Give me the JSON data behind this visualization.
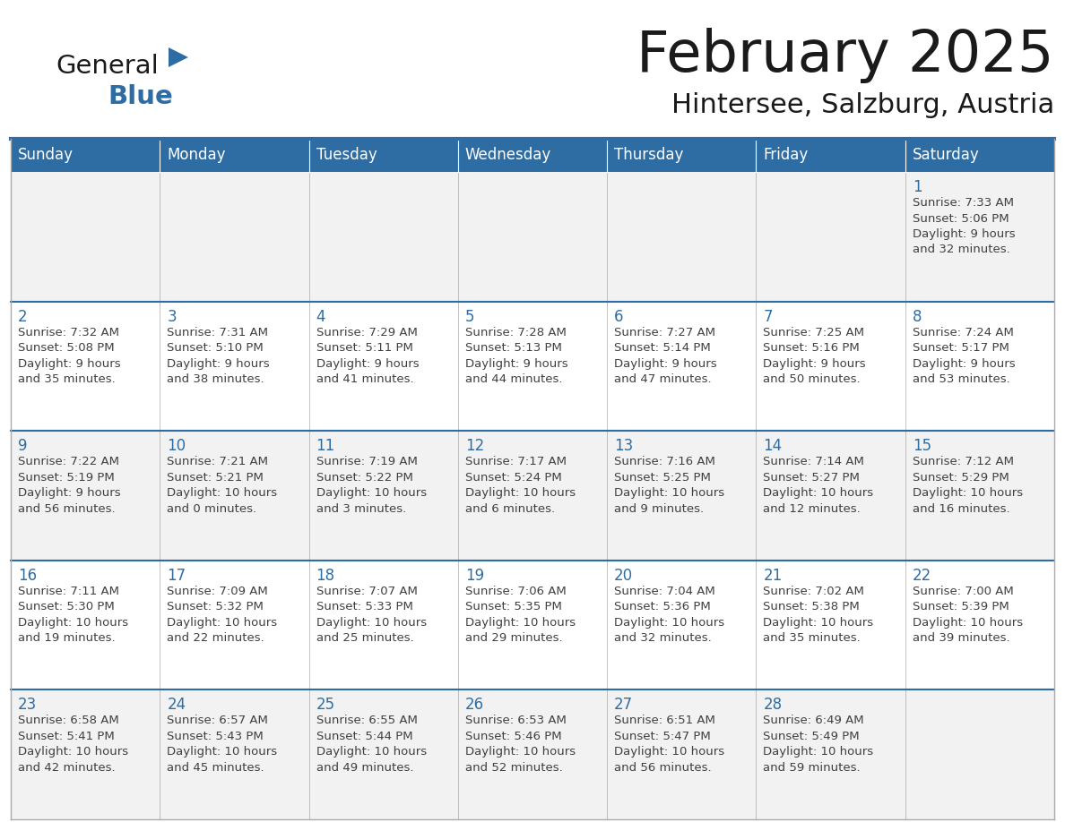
{
  "title": "February 2025",
  "subtitle": "Hintersee, Salzburg, Austria",
  "header_bg": "#2E6DA4",
  "header_text_color": "#FFFFFF",
  "cell_bg_light": "#F2F2F2",
  "cell_bg_white": "#FFFFFF",
  "day_number_color": "#2E6DA4",
  "text_color": "#404040",
  "grid_color": "#AAAAAA",
  "separator_color": "#2E6DA4",
  "days_of_week": [
    "Sunday",
    "Monday",
    "Tuesday",
    "Wednesday",
    "Thursday",
    "Friday",
    "Saturday"
  ],
  "weeks": [
    [
      {
        "day": "",
        "info": ""
      },
      {
        "day": "",
        "info": ""
      },
      {
        "day": "",
        "info": ""
      },
      {
        "day": "",
        "info": ""
      },
      {
        "day": "",
        "info": ""
      },
      {
        "day": "",
        "info": ""
      },
      {
        "day": "1",
        "info": "Sunrise: 7:33 AM\nSunset: 5:06 PM\nDaylight: 9 hours\nand 32 minutes."
      }
    ],
    [
      {
        "day": "2",
        "info": "Sunrise: 7:32 AM\nSunset: 5:08 PM\nDaylight: 9 hours\nand 35 minutes."
      },
      {
        "day": "3",
        "info": "Sunrise: 7:31 AM\nSunset: 5:10 PM\nDaylight: 9 hours\nand 38 minutes."
      },
      {
        "day": "4",
        "info": "Sunrise: 7:29 AM\nSunset: 5:11 PM\nDaylight: 9 hours\nand 41 minutes."
      },
      {
        "day": "5",
        "info": "Sunrise: 7:28 AM\nSunset: 5:13 PM\nDaylight: 9 hours\nand 44 minutes."
      },
      {
        "day": "6",
        "info": "Sunrise: 7:27 AM\nSunset: 5:14 PM\nDaylight: 9 hours\nand 47 minutes."
      },
      {
        "day": "7",
        "info": "Sunrise: 7:25 AM\nSunset: 5:16 PM\nDaylight: 9 hours\nand 50 minutes."
      },
      {
        "day": "8",
        "info": "Sunrise: 7:24 AM\nSunset: 5:17 PM\nDaylight: 9 hours\nand 53 minutes."
      }
    ],
    [
      {
        "day": "9",
        "info": "Sunrise: 7:22 AM\nSunset: 5:19 PM\nDaylight: 9 hours\nand 56 minutes."
      },
      {
        "day": "10",
        "info": "Sunrise: 7:21 AM\nSunset: 5:21 PM\nDaylight: 10 hours\nand 0 minutes."
      },
      {
        "day": "11",
        "info": "Sunrise: 7:19 AM\nSunset: 5:22 PM\nDaylight: 10 hours\nand 3 minutes."
      },
      {
        "day": "12",
        "info": "Sunrise: 7:17 AM\nSunset: 5:24 PM\nDaylight: 10 hours\nand 6 minutes."
      },
      {
        "day": "13",
        "info": "Sunrise: 7:16 AM\nSunset: 5:25 PM\nDaylight: 10 hours\nand 9 minutes."
      },
      {
        "day": "14",
        "info": "Sunrise: 7:14 AM\nSunset: 5:27 PM\nDaylight: 10 hours\nand 12 minutes."
      },
      {
        "day": "15",
        "info": "Sunrise: 7:12 AM\nSunset: 5:29 PM\nDaylight: 10 hours\nand 16 minutes."
      }
    ],
    [
      {
        "day": "16",
        "info": "Sunrise: 7:11 AM\nSunset: 5:30 PM\nDaylight: 10 hours\nand 19 minutes."
      },
      {
        "day": "17",
        "info": "Sunrise: 7:09 AM\nSunset: 5:32 PM\nDaylight: 10 hours\nand 22 minutes."
      },
      {
        "day": "18",
        "info": "Sunrise: 7:07 AM\nSunset: 5:33 PM\nDaylight: 10 hours\nand 25 minutes."
      },
      {
        "day": "19",
        "info": "Sunrise: 7:06 AM\nSunset: 5:35 PM\nDaylight: 10 hours\nand 29 minutes."
      },
      {
        "day": "20",
        "info": "Sunrise: 7:04 AM\nSunset: 5:36 PM\nDaylight: 10 hours\nand 32 minutes."
      },
      {
        "day": "21",
        "info": "Sunrise: 7:02 AM\nSunset: 5:38 PM\nDaylight: 10 hours\nand 35 minutes."
      },
      {
        "day": "22",
        "info": "Sunrise: 7:00 AM\nSunset: 5:39 PM\nDaylight: 10 hours\nand 39 minutes."
      }
    ],
    [
      {
        "day": "23",
        "info": "Sunrise: 6:58 AM\nSunset: 5:41 PM\nDaylight: 10 hours\nand 42 minutes."
      },
      {
        "day": "24",
        "info": "Sunrise: 6:57 AM\nSunset: 5:43 PM\nDaylight: 10 hours\nand 45 minutes."
      },
      {
        "day": "25",
        "info": "Sunrise: 6:55 AM\nSunset: 5:44 PM\nDaylight: 10 hours\nand 49 minutes."
      },
      {
        "day": "26",
        "info": "Sunrise: 6:53 AM\nSunset: 5:46 PM\nDaylight: 10 hours\nand 52 minutes."
      },
      {
        "day": "27",
        "info": "Sunrise: 6:51 AM\nSunset: 5:47 PM\nDaylight: 10 hours\nand 56 minutes."
      },
      {
        "day": "28",
        "info": "Sunrise: 6:49 AM\nSunset: 5:49 PM\nDaylight: 10 hours\nand 59 minutes."
      },
      {
        "day": "",
        "info": ""
      }
    ]
  ],
  "logo_color_general": "#1A1A1A",
  "logo_color_blue": "#2E6DA4",
  "logo_triangle_color": "#2E6DA4",
  "title_color": "#1A1A1A"
}
